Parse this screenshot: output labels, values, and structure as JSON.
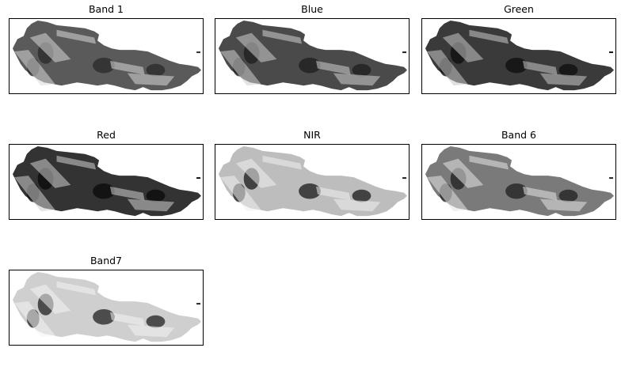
{
  "figure": {
    "panels": [
      {
        "title": "Band 1",
        "tone": {
          "base": "#5a5a5a",
          "dark": "#2a2a2a",
          "light": "#d8d8d8"
        }
      },
      {
        "title": "Blue",
        "tone": {
          "base": "#4a4a4a",
          "dark": "#1e1e1e",
          "light": "#d0d0d0"
        }
      },
      {
        "title": "Green",
        "tone": {
          "base": "#3a3a3a",
          "dark": "#0e0e0e",
          "light": "#c8c8c8"
        }
      },
      {
        "title": "Red",
        "tone": {
          "base": "#333333",
          "dark": "#0a0a0a",
          "light": "#cfcfcf"
        }
      },
      {
        "title": "NIR",
        "tone": {
          "base": "#bdbdbd",
          "dark": "#1a1a1a",
          "light": "#f0f0f0"
        }
      },
      {
        "title": "Band 6",
        "tone": {
          "base": "#7a7a7a",
          "dark": "#1f1f1f",
          "light": "#e6e6e6"
        }
      },
      {
        "title": "Band7",
        "tone": {
          "base": "#cfcfcf",
          "dark": "#202020",
          "light": "#f4f4f4"
        }
      }
    ]
  }
}
